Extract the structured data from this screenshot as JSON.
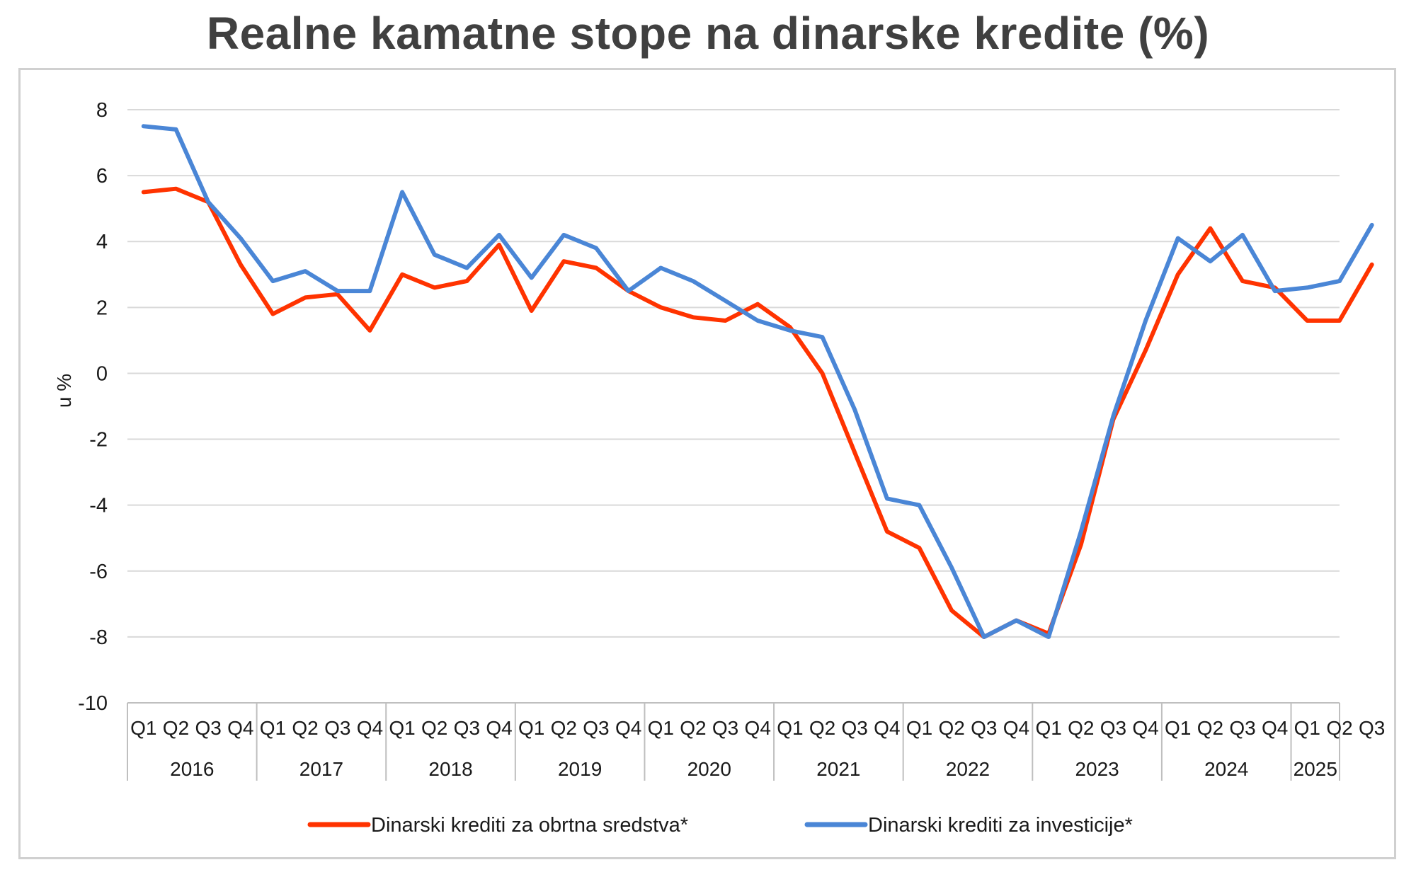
{
  "chart_data": {
    "type": "line",
    "title": "Realne kamatne stope na dinarske kredite (%)",
    "ylabel": "u %",
    "ylim": [
      -10,
      8
    ],
    "yticks": [
      8,
      6,
      4,
      2,
      0,
      -2,
      -4,
      -6,
      -8,
      -10
    ],
    "grid": true,
    "legend_position": "bottom",
    "quarter_labels": [
      "Q1",
      "Q2",
      "Q3",
      "Q4"
    ],
    "years": [
      "2016",
      "2017",
      "2018",
      "2019",
      "2020",
      "2021",
      "2022",
      "2023",
      "2024",
      "2025"
    ],
    "x": [
      "2016 Q1",
      "2016 Q2",
      "2016 Q3",
      "2016 Q4",
      "2017 Q1",
      "2017 Q2",
      "2017 Q3",
      "2017 Q4",
      "2018 Q1",
      "2018 Q2",
      "2018 Q3",
      "2018 Q4",
      "2019 Q1",
      "2019 Q2",
      "2019 Q3",
      "2019 Q4",
      "2020 Q1",
      "2020 Q2",
      "2020 Q3",
      "2020 Q4",
      "2021 Q1",
      "2021 Q2",
      "2021 Q3",
      "2021 Q4",
      "2022 Q1",
      "2022 Q2",
      "2022 Q3",
      "2022 Q4",
      "2023 Q1",
      "2023 Q2",
      "2023 Q3",
      "2023 Q4",
      "2024 Q1",
      "2024 Q2",
      "2024 Q3",
      "2024 Q4",
      "2025 Q1",
      "2025 Q2",
      "2025 Q3"
    ],
    "series": [
      {
        "name": "Dinarski krediti za obrtna sredstva*",
        "color": "#ff3300",
        "values": [
          5.5,
          5.6,
          5.2,
          3.3,
          1.8,
          2.3,
          2.4,
          1.3,
          3.0,
          2.6,
          2.8,
          3.9,
          1.9,
          3.4,
          3.2,
          2.5,
          2.0,
          1.7,
          1.6,
          2.1,
          1.4,
          0.0,
          -2.4,
          -4.8,
          -5.3,
          -7.2,
          -8.0,
          -7.5,
          -7.9,
          -5.2,
          -1.4,
          0.7,
          3.0,
          4.4,
          2.8,
          2.6,
          1.6,
          1.6,
          3.3
        ]
      },
      {
        "name": "Dinarski krediti za investicije*",
        "color": "#4a86d6",
        "values": [
          7.5,
          7.4,
          5.2,
          4.1,
          2.8,
          3.1,
          2.5,
          2.5,
          5.5,
          3.6,
          3.2,
          4.2,
          2.9,
          4.2,
          3.8,
          2.5,
          3.2,
          2.8,
          2.2,
          1.6,
          1.3,
          1.1,
          -1.1,
          -3.8,
          -4.0,
          -5.9,
          -8.0,
          -7.5,
          -8.0,
          -4.8,
          -1.3,
          1.6,
          4.1,
          3.4,
          4.2,
          2.5,
          2.6,
          2.8,
          4.5
        ]
      }
    ]
  }
}
